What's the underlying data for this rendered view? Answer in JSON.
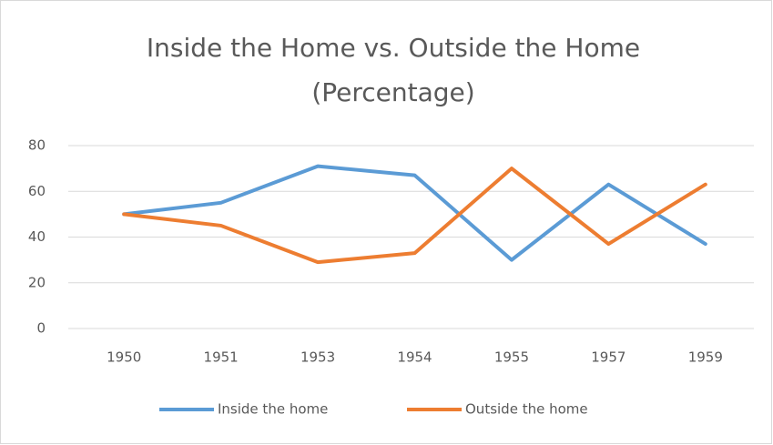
{
  "chart_data": {
    "type": "line",
    "title": [
      "Inside the Home vs. Outside the Home",
      "(Percentage)"
    ],
    "categories": [
      "1950",
      "1951",
      "1953",
      "1954",
      "1955",
      "1957",
      "1959"
    ],
    "series": [
      {
        "name": "Inside the home",
        "color": "#5b9bd5",
        "values": [
          50,
          55,
          71,
          67,
          30,
          63,
          37
        ]
      },
      {
        "name": "Outside the home",
        "color": "#ed7d31",
        "values": [
          50,
          45,
          29,
          33,
          70,
          37,
          63
        ]
      }
    ],
    "ylim": [
      0,
      80
    ],
    "yticks": [
      0,
      20,
      40,
      60,
      80
    ],
    "grid": true,
    "legend": "bottom"
  }
}
